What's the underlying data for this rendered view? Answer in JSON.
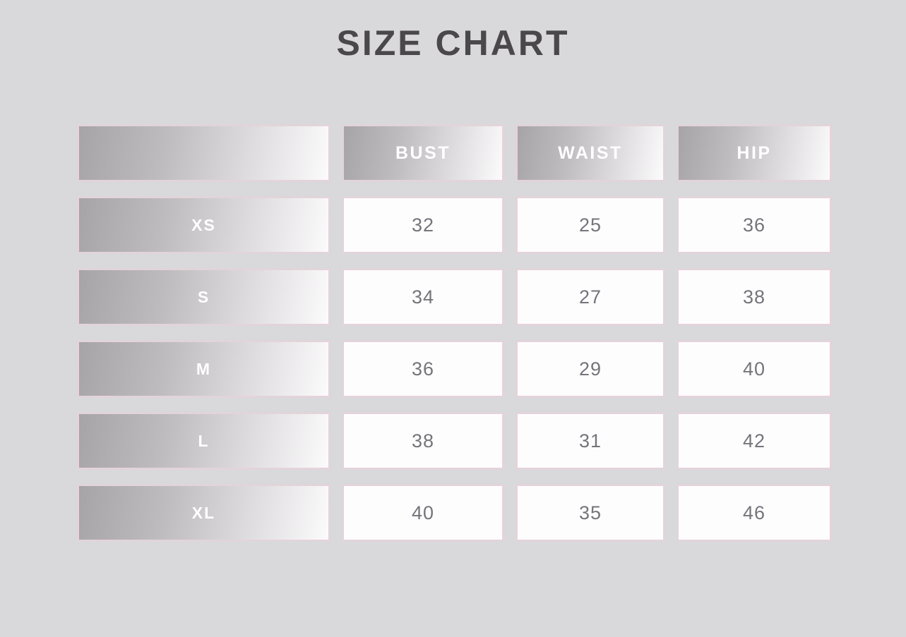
{
  "title": "SIZE CHART",
  "colors": {
    "page_background": "#d9d8da",
    "title_text": "#4a484b",
    "header_gradient_start": "#a6a4a7",
    "header_gradient_end": "#fcfbfc",
    "cell_border_pink": "#e7d2d9",
    "value_cell_background": "#fdfdfe",
    "value_text": "#76747a",
    "header_text": "#ffffff"
  },
  "table": {
    "columns": [
      "",
      "BUST",
      "WAIST",
      "HIP"
    ],
    "rows": [
      {
        "size": "XS",
        "bust": "32",
        "waist": "25",
        "hip": "36"
      },
      {
        "size": "S",
        "bust": "34",
        "waist": "27",
        "hip": "38"
      },
      {
        "size": "M",
        "bust": "36",
        "waist": "29",
        "hip": "40"
      },
      {
        "size": "L",
        "bust": "38",
        "waist": "31",
        "hip": "42"
      },
      {
        "size": "XL",
        "bust": "40",
        "waist": "35",
        "hip": "46"
      }
    ]
  },
  "chart_data": {
    "type": "table",
    "title": "SIZE CHART",
    "categories": [
      "XS",
      "S",
      "M",
      "L",
      "XL"
    ],
    "series": [
      {
        "name": "BUST",
        "values": [
          32,
          34,
          36,
          38,
          40
        ]
      },
      {
        "name": "WAIST",
        "values": [
          25,
          27,
          29,
          31,
          35
        ]
      },
      {
        "name": "HIP",
        "values": [
          36,
          38,
          40,
          42,
          46
        ]
      }
    ]
  }
}
